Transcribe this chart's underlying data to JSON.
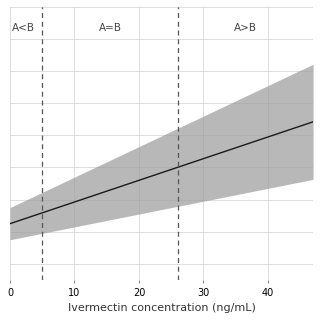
{
  "title": "",
  "xlabel": "Ivermectin concentration (ng/mL)",
  "ylabel": "",
  "x_min": 0,
  "x_max": 47,
  "y_min": 0.3,
  "y_max": 2.0,
  "line_color": "#1a1a1a",
  "ci_color": "#a0a0a0",
  "ci_alpha": 0.75,
  "grid_color": "#d0d0d0",
  "background_color": "#ffffff",
  "dashed_line_1": 5,
  "dashed_line_2": 26,
  "label_A_lt_B": "A<B",
  "label_A_eq_B": "A=B",
  "label_A_gt_B": "A>B",
  "xticks": [
    0,
    10,
    20,
    30,
    40
  ],
  "slope": 0.0135,
  "intercept": 0.65,
  "dashed_color": "#555555",
  "label_fontsize": 7.5,
  "axis_fontsize": 7,
  "xlabel_fontsize": 8,
  "ci_base": 0.1,
  "ci_slope": 0.0055
}
